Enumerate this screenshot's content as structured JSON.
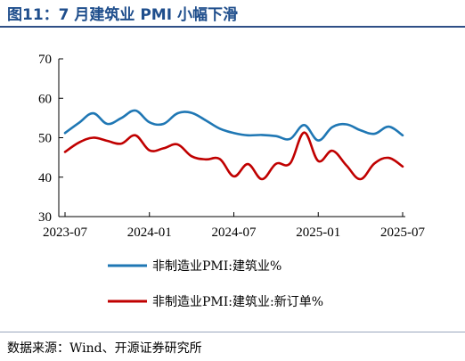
{
  "figure": {
    "title": "图11：7 月建筑业 PMI 小幅下滑",
    "source": "数据来源：Wind、开源证券研究所"
  },
  "chart_data": {
    "type": "line",
    "x": [
      "2023-07",
      "2023-08",
      "2023-09",
      "2023-10",
      "2023-11",
      "2023-12",
      "2024-01",
      "2024-02",
      "2024-03",
      "2024-04",
      "2024-05",
      "2024-06",
      "2024-07",
      "2024-08",
      "2024-09",
      "2024-10",
      "2024-11",
      "2024-12",
      "2025-01",
      "2025-02",
      "2025-03",
      "2025-04",
      "2025-05",
      "2025-06",
      "2025-07"
    ],
    "x_ticks": [
      "2023-07",
      "2024-01",
      "2024-07",
      "2025-01",
      "2025-07"
    ],
    "ylim": [
      30,
      70
    ],
    "y_ticks": [
      30,
      40,
      50,
      60,
      70
    ],
    "legend_position": "bottom",
    "series": [
      {
        "name": "非制造业PMI:建筑业%",
        "color": "#1f77b4",
        "values": [
          51.2,
          53.8,
          56.2,
          53.5,
          55.0,
          56.9,
          53.9,
          53.5,
          56.2,
          56.3,
          54.4,
          52.3,
          51.2,
          50.6,
          50.7,
          50.4,
          49.7,
          53.2,
          49.3,
          52.7,
          53.4,
          51.9,
          51.0,
          52.8,
          50.6
        ]
      },
      {
        "name": "非制造业PMI:建筑业:新订单%",
        "color": "#c00000",
        "values": [
          46.4,
          48.8,
          50.0,
          49.2,
          48.5,
          50.6,
          46.8,
          47.3,
          48.3,
          45.3,
          44.5,
          44.6,
          40.2,
          43.3,
          39.5,
          43.4,
          43.5,
          51.3,
          44.1,
          46.7,
          43.0,
          39.5,
          43.5,
          44.9,
          42.7
        ]
      }
    ]
  }
}
